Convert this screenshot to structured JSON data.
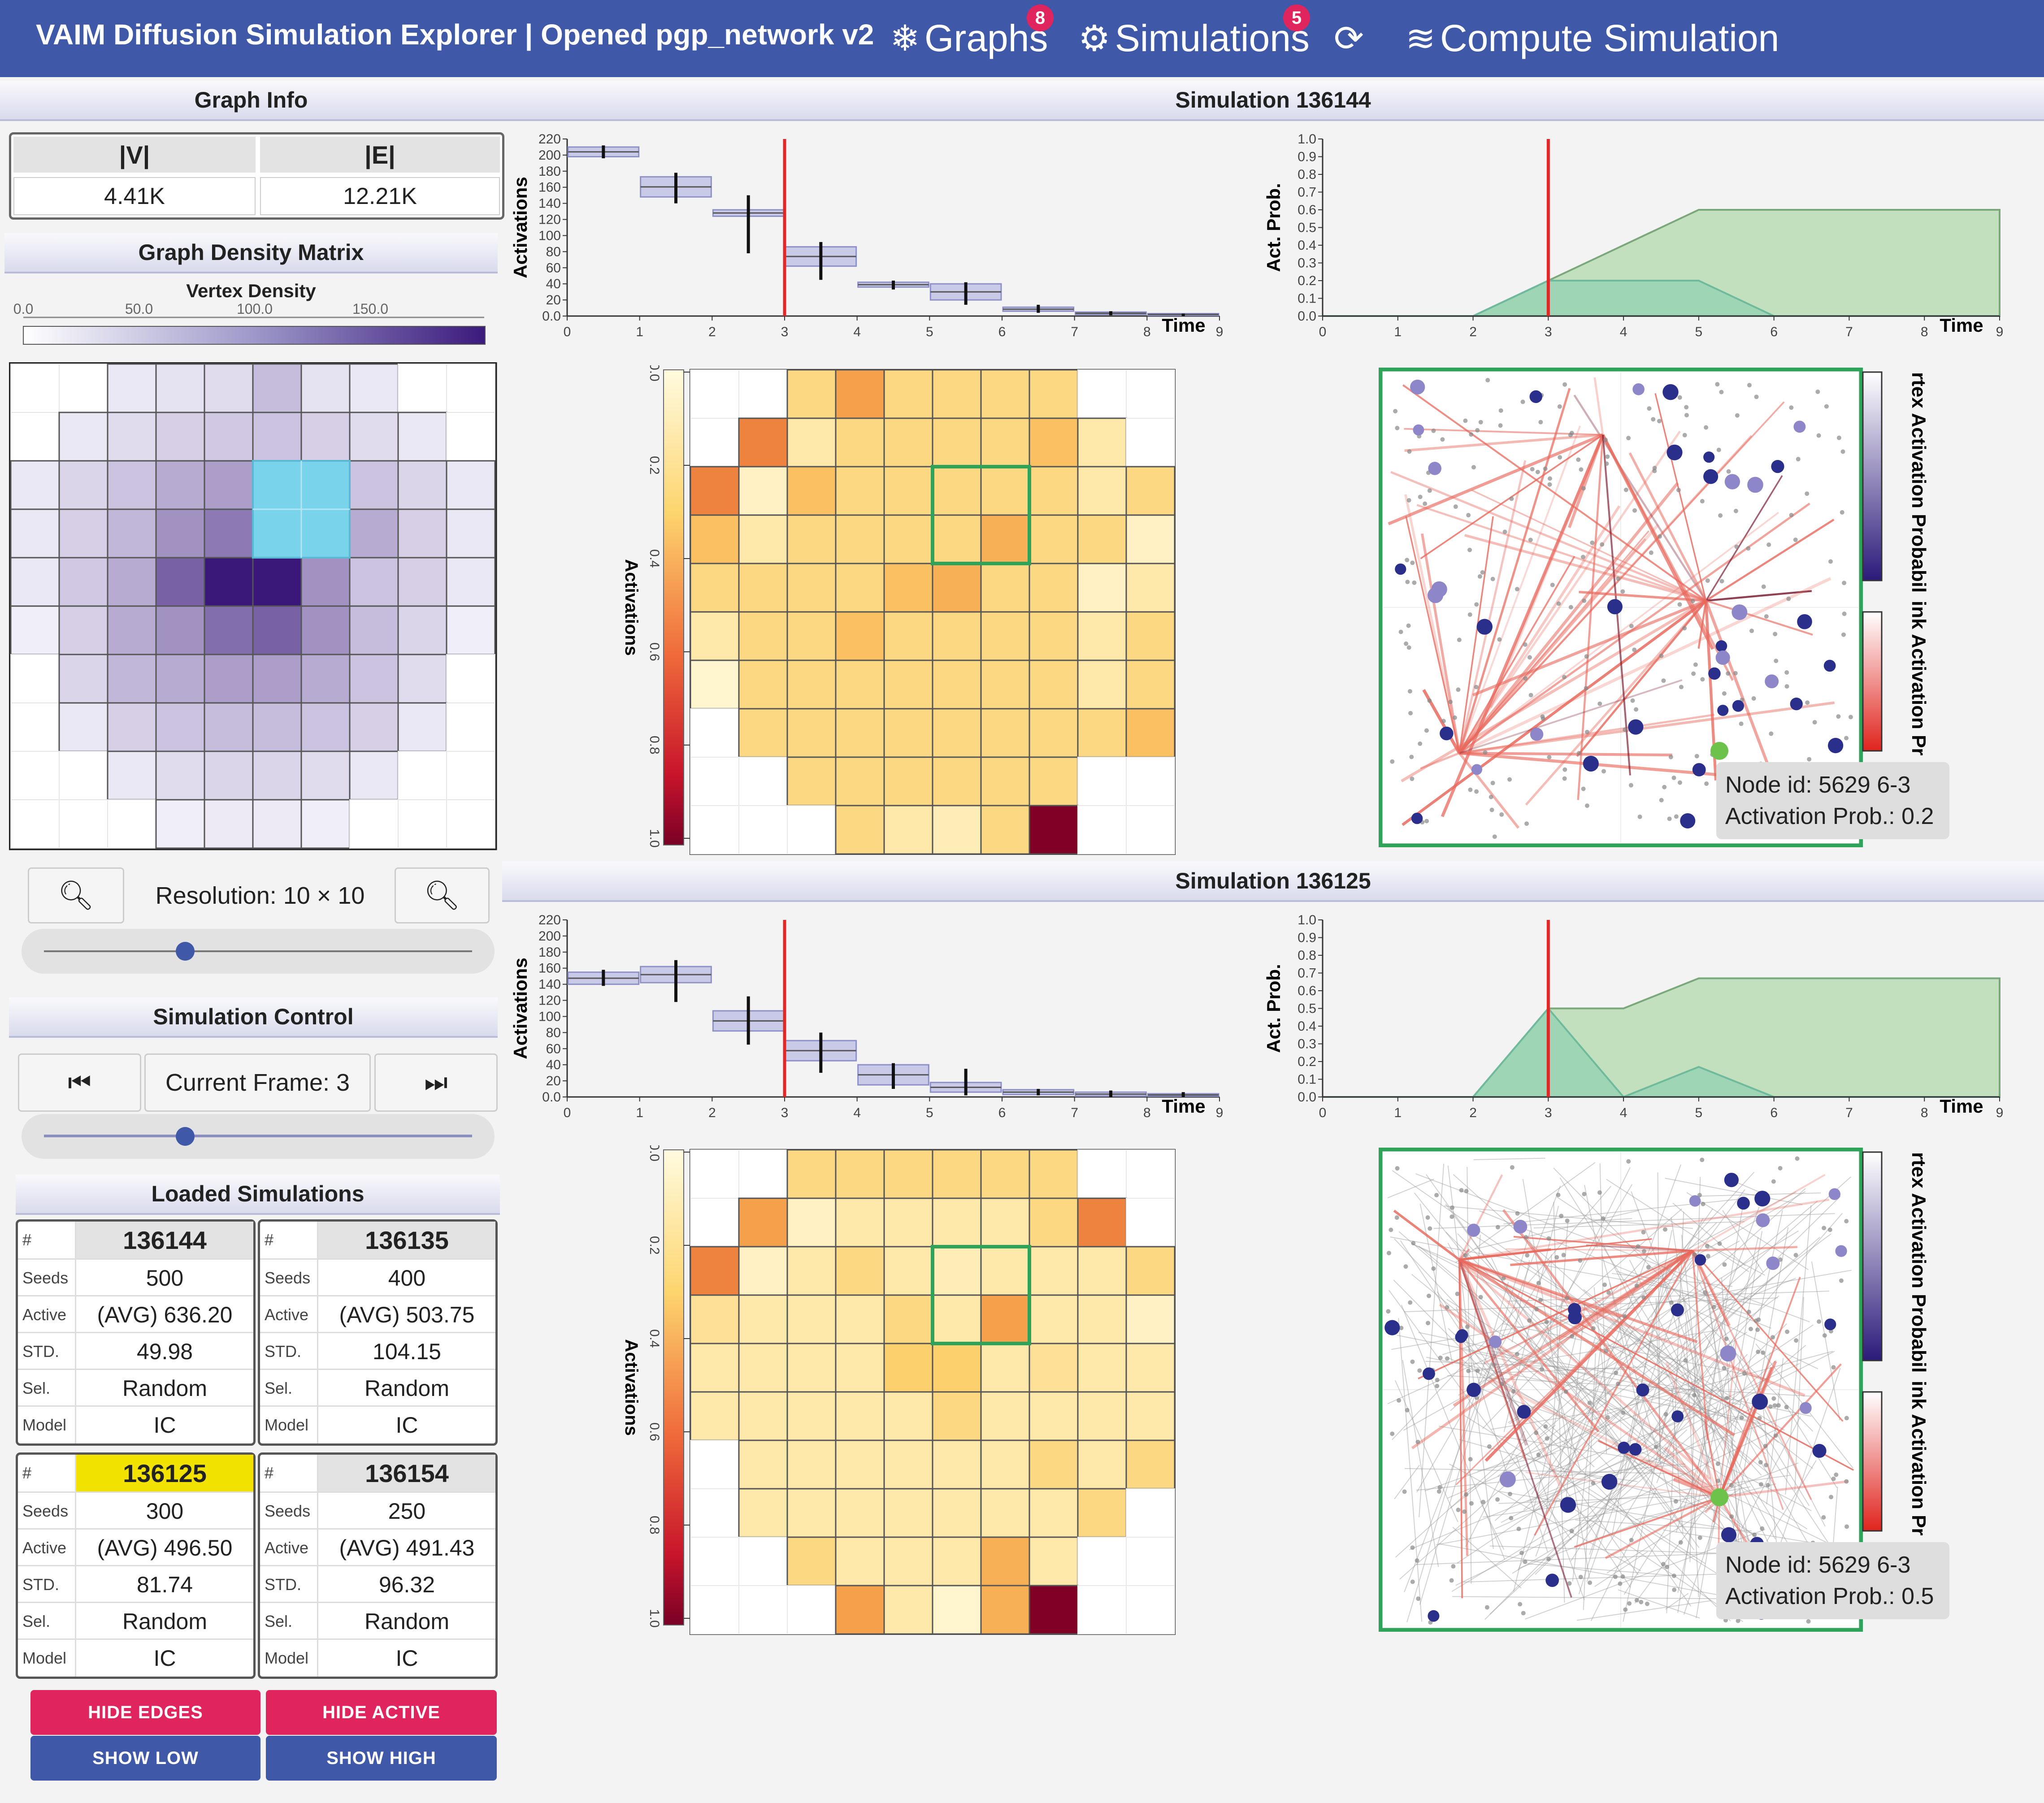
{
  "app": {
    "title": "VAIM Diffusion Simulation Explorer | Opened pgp_network v2",
    "nav": [
      {
        "label": "Graphs",
        "icon": "snowflake-icon",
        "badge": "8"
      },
      {
        "label": "Simulations",
        "icon": "gear-icon",
        "badge": "5"
      },
      {
        "label": "",
        "icon": "refresh-icon"
      },
      {
        "label": "Compute Simulation",
        "icon": "compute-icon"
      }
    ]
  },
  "left": {
    "graph_info_title": "Graph Info",
    "v_header": "|V|",
    "e_header": "|E|",
    "v_value": "4.41K",
    "e_value": "12.21K",
    "density_title": "Graph Density Matrix",
    "vertex_density_label": "Vertex Density",
    "density_ticks": [
      "0.0",
      "50.0",
      "100.0",
      "150.0"
    ],
    "resolution_label": "Resolution: 10 × 10",
    "resolution_slider": 0.33,
    "sim_control_title": "Simulation Control",
    "current_frame_label": "Current Frame: 3",
    "frame_slider": 0.33,
    "loaded_title": "Loaded Simulations",
    "row_keys": [
      "#",
      "Seeds",
      "Active",
      "STD.",
      "Sel.",
      "Model"
    ],
    "sims": [
      {
        "id": "136144",
        "seeds": "500",
        "active": "(AVG) 636.20",
        "std": "49.98",
        "sel": "Random",
        "model": "IC",
        "highlight": false
      },
      {
        "id": "136135",
        "seeds": "400",
        "active": "(AVG) 503.75",
        "std": "104.15",
        "sel": "Random",
        "model": "IC",
        "highlight": false
      },
      {
        "id": "136125",
        "seeds": "300",
        "active": "(AVG) 496.50",
        "std": "81.74",
        "sel": "Random",
        "model": "IC",
        "highlight": true
      },
      {
        "id": "136154",
        "seeds": "250",
        "active": "(AVG) 491.43",
        "std": "96.32",
        "sel": "Random",
        "model": "IC",
        "highlight": false
      }
    ],
    "buttons": {
      "hide_edges": "HIDE EDGES",
      "hide_active": "HIDE ACTIVE",
      "show_low": "SHOW LOW",
      "show_high": "SHOW HIGH"
    }
  },
  "panels": [
    {
      "title": "Simulation 136144",
      "tooltip_node": "Node id: 5629 6-3",
      "tooltip_prob": "Activation Prob.: 0.2"
    },
    {
      "title": "Simulation 136125",
      "tooltip_node": "Node id: 5629 6-3",
      "tooltip_prob": "Activation Prob.: 0.5"
    }
  ],
  "chart_labels": {
    "activations": "Activations",
    "act_prob": "Act. Prob.",
    "time": "Time",
    "heat_axis": "Activations",
    "vertex_legend": "rtex Activation Probabil",
    "link_legend": "ink Activation Pr"
  },
  "chart_data": [
    {
      "type": "box",
      "panel": 0,
      "ylabel": "Activations",
      "xlabel": "Time",
      "ylim": [
        0,
        220
      ],
      "xlim": [
        0,
        9
      ],
      "xticks": [
        "0",
        "1",
        "2",
        "3",
        "4",
        "5",
        "6",
        "7",
        "8",
        "9"
      ],
      "yticks": [
        "0.0",
        "20",
        "40",
        "60",
        "80",
        "100",
        "120",
        "140",
        "160",
        "180",
        "200",
        "220"
      ],
      "current_time": 3,
      "boxes": [
        {
          "t": 1,
          "q1": 198,
          "q3": 210,
          "lo": 196,
          "hi": 212
        },
        {
          "t": 2,
          "q1": 148,
          "q3": 173,
          "lo": 140,
          "hi": 178
        },
        {
          "t": 3,
          "q1": 124,
          "q3": 132,
          "lo": 78,
          "hi": 150
        },
        {
          "t": 4,
          "q1": 62,
          "q3": 86,
          "lo": 45,
          "hi": 92
        },
        {
          "t": 5,
          "q1": 36,
          "q3": 42,
          "lo": 33,
          "hi": 44
        },
        {
          "t": 6,
          "q1": 20,
          "q3": 40,
          "lo": 14,
          "hi": 42
        },
        {
          "t": 7,
          "q1": 6,
          "q3": 11,
          "lo": 4,
          "hi": 14
        },
        {
          "t": 8,
          "q1": 2,
          "q3": 5,
          "lo": 1,
          "hi": 6
        },
        {
          "t": 9,
          "q1": 1,
          "q3": 3,
          "lo": 0,
          "hi": 3
        }
      ]
    },
    {
      "type": "area",
      "panel": 0,
      "ylabel": "Act. Prob.",
      "xlabel": "Time",
      "ylim": [
        0,
        1
      ],
      "xlim": [
        0,
        9
      ],
      "xticks": [
        "0",
        "1",
        "2",
        "3",
        "4",
        "5",
        "6",
        "7",
        "8",
        "9"
      ],
      "yticks": [
        "0.0",
        "0.1",
        "0.2",
        "0.3",
        "0.4",
        "0.5",
        "0.6",
        "0.7",
        "0.8",
        "0.9",
        "1.0"
      ],
      "current_time": 3,
      "cumulative": {
        "x": [
          0,
          2,
          5,
          9
        ],
        "y": [
          0,
          0,
          0.6,
          0.6
        ]
      },
      "instant": {
        "x": [
          0,
          2,
          3,
          5,
          6,
          9
        ],
        "y": [
          0,
          0,
          0.2,
          0.2,
          0,
          0
        ]
      }
    },
    {
      "type": "box",
      "panel": 1,
      "ylabel": "Activations",
      "xlabel": "Time",
      "ylim": [
        0,
        220
      ],
      "xlim": [
        0,
        9
      ],
      "xticks": [
        "0",
        "1",
        "2",
        "3",
        "4",
        "5",
        "6",
        "7",
        "8",
        "9"
      ],
      "yticks": [
        "0.0",
        "20",
        "40",
        "60",
        "80",
        "100",
        "120",
        "140",
        "160",
        "180",
        "200",
        "220"
      ],
      "current_time": 3,
      "boxes": [
        {
          "t": 1,
          "q1": 140,
          "q3": 155,
          "lo": 138,
          "hi": 158
        },
        {
          "t": 2,
          "q1": 142,
          "q3": 162,
          "lo": 118,
          "hi": 170
        },
        {
          "t": 3,
          "q1": 82,
          "q3": 107,
          "lo": 65,
          "hi": 125
        },
        {
          "t": 4,
          "q1": 45,
          "q3": 70,
          "lo": 30,
          "hi": 80
        },
        {
          "t": 5,
          "q1": 15,
          "q3": 40,
          "lo": 10,
          "hi": 42
        },
        {
          "t": 6,
          "q1": 6,
          "q3": 18,
          "lo": 2,
          "hi": 35
        },
        {
          "t": 7,
          "q1": 3,
          "q3": 9,
          "lo": 2,
          "hi": 10
        },
        {
          "t": 8,
          "q1": 1,
          "q3": 6,
          "lo": 0,
          "hi": 8
        },
        {
          "t": 9,
          "q1": 1,
          "q3": 4,
          "lo": 0,
          "hi": 6
        }
      ]
    },
    {
      "type": "area",
      "panel": 1,
      "ylabel": "Act. Prob.",
      "xlabel": "Time",
      "ylim": [
        0,
        1
      ],
      "xlim": [
        0,
        9
      ],
      "xticks": [
        "0",
        "1",
        "2",
        "3",
        "4",
        "5",
        "6",
        "7",
        "8",
        "9"
      ],
      "yticks": [
        "0.0",
        "0.1",
        "0.2",
        "0.3",
        "0.4",
        "0.5",
        "0.6",
        "0.7",
        "0.8",
        "0.9",
        "1.0"
      ],
      "current_time": 3,
      "cumulative": {
        "x": [
          0,
          2,
          3,
          4,
          5,
          9
        ],
        "y": [
          0,
          0,
          0.5,
          0.5,
          0.67,
          0.67
        ]
      },
      "instant": {
        "x": [
          0,
          2,
          3,
          4,
          5,
          6,
          9
        ],
        "y": [
          0,
          0,
          0.5,
          0,
          0.17,
          0,
          0
        ]
      }
    },
    {
      "type": "heatmap",
      "panel": 0,
      "ylabel": "Activations",
      "scale_ticks": [
        "0.0",
        "0.2",
        "0.4",
        "0.6",
        "0.8",
        "1.0"
      ],
      "rows": [
        [
          0.0,
          0.0,
          0.3,
          0.5,
          0.3,
          0.3,
          0.3,
          0.3,
          0.0,
          0.0
        ],
        [
          0.0,
          0.6,
          0.2,
          0.3,
          0.3,
          0.3,
          0.3,
          0.4,
          0.2,
          0.0
        ],
        [
          0.6,
          0.1,
          0.4,
          0.3,
          0.3,
          0.3,
          0.3,
          0.3,
          0.2,
          0.3
        ],
        [
          0.4,
          0.2,
          0.3,
          0.3,
          0.3,
          0.3,
          0.45,
          0.3,
          0.3,
          0.1
        ],
        [
          0.3,
          0.3,
          0.3,
          0.3,
          0.4,
          0.45,
          0.3,
          0.3,
          0.1,
          0.2
        ],
        [
          0.2,
          0.3,
          0.3,
          0.4,
          0.3,
          0.3,
          0.3,
          0.3,
          0.2,
          0.3
        ],
        [
          0.05,
          0.3,
          0.3,
          0.3,
          0.3,
          0.3,
          0.3,
          0.3,
          0.2,
          0.3
        ],
        [
          0.0,
          0.3,
          0.3,
          0.3,
          0.3,
          0.3,
          0.3,
          0.3,
          0.3,
          0.4
        ],
        [
          0.0,
          0.0,
          0.3,
          0.3,
          0.3,
          0.3,
          0.3,
          0.3,
          0.0,
          0.0
        ],
        [
          0.0,
          0.0,
          0.0,
          0.3,
          0.2,
          0.15,
          0.3,
          1.0,
          0.0,
          0.0
        ]
      ],
      "selected": {
        "row": 2,
        "col": 5,
        "w": 2,
        "h": 2
      }
    },
    {
      "type": "heatmap",
      "panel": 1,
      "ylabel": "Activations",
      "scale_ticks": [
        "0.0",
        "0.2",
        "0.4",
        "0.6",
        "0.8",
        "1.0"
      ],
      "rows": [
        [
          0.0,
          0.0,
          0.3,
          0.3,
          0.3,
          0.3,
          0.3,
          0.3,
          0.0,
          0.0
        ],
        [
          0.0,
          0.5,
          0.1,
          0.2,
          0.2,
          0.2,
          0.2,
          0.3,
          0.6,
          0.0
        ],
        [
          0.6,
          0.1,
          0.2,
          0.3,
          0.2,
          0.15,
          0.2,
          0.2,
          0.2,
          0.3
        ],
        [
          0.25,
          0.2,
          0.2,
          0.2,
          0.3,
          0.2,
          0.5,
          0.2,
          0.2,
          0.1
        ],
        [
          0.2,
          0.2,
          0.2,
          0.2,
          0.35,
          0.35,
          0.2,
          0.25,
          0.2,
          0.2
        ],
        [
          0.2,
          0.2,
          0.2,
          0.2,
          0.2,
          0.3,
          0.2,
          0.2,
          0.2,
          0.2
        ],
        [
          0.0,
          0.2,
          0.2,
          0.2,
          0.2,
          0.2,
          0.2,
          0.3,
          0.2,
          0.3
        ],
        [
          0.0,
          0.2,
          0.2,
          0.2,
          0.2,
          0.2,
          0.2,
          0.2,
          0.3,
          0.0
        ],
        [
          0.0,
          0.0,
          0.3,
          0.2,
          0.2,
          0.2,
          0.45,
          0.2,
          0.0,
          0.0
        ],
        [
          0.0,
          0.0,
          0.0,
          0.5,
          0.2,
          0.05,
          0.45,
          1.0,
          0.0,
          0.0
        ]
      ],
      "selected": {
        "row": 2,
        "col": 5,
        "w": 2,
        "h": 2
      }
    },
    {
      "type": "heatmap",
      "name": "Graph Density Matrix",
      "ylabel": "",
      "scale_ticks": [
        "0.0",
        "50.0",
        "100.0",
        "150.0"
      ],
      "rows": [
        [
          0,
          0,
          10,
          15,
          20,
          45,
          15,
          10,
          0,
          0
        ],
        [
          0,
          10,
          20,
          30,
          35,
          40,
          30,
          20,
          10,
          0
        ],
        [
          10,
          25,
          40,
          60,
          70,
          0,
          0,
          40,
          25,
          10
        ],
        [
          10,
          30,
          50,
          80,
          100,
          0,
          0,
          60,
          30,
          10
        ],
        [
          10,
          35,
          60,
          120,
          180,
          180,
          80,
          40,
          30,
          10
        ],
        [
          5,
          30,
          60,
          80,
          110,
          120,
          80,
          45,
          25,
          5
        ],
        [
          0,
          25,
          50,
          60,
          70,
          70,
          60,
          40,
          20,
          0
        ],
        [
          0,
          10,
          30,
          40,
          45,
          45,
          40,
          30,
          10,
          0
        ],
        [
          0,
          0,
          10,
          20,
          25,
          25,
          20,
          10,
          0,
          0
        ],
        [
          0,
          0,
          0,
          5,
          8,
          8,
          5,
          0,
          0,
          0
        ]
      ],
      "selected": {
        "row": 2,
        "col": 5,
        "w": 2,
        "h": 2
      }
    }
  ]
}
